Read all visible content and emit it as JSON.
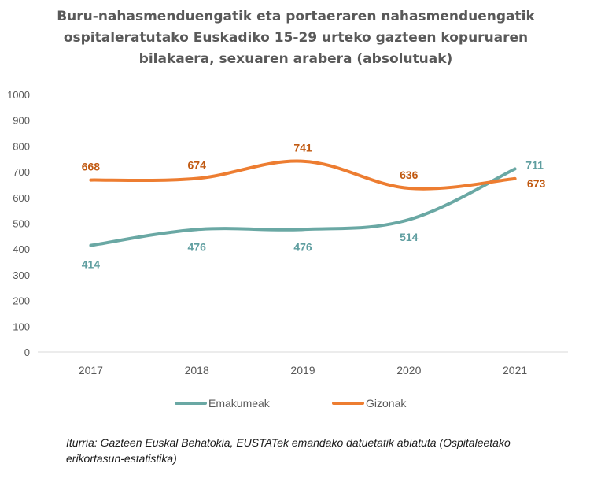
{
  "chart_data": {
    "type": "line",
    "title_lines": [
      "Buru-nahasmenduengatik eta portaeraren nahasmenduengatik",
      "ospitaleratutako Euskadiko 15-29 urteko gazteen kopuruaren",
      "bilakaera, sexuaren arabera (absolutuak)"
    ],
    "xlabel": "",
    "ylabel": "",
    "categories": [
      "2017",
      "2018",
      "2019",
      "2020",
      "2021"
    ],
    "ylim": [
      0,
      1000
    ],
    "yticks": [
      0,
      100,
      200,
      300,
      400,
      500,
      600,
      700,
      800,
      900,
      1000
    ],
    "grid": false,
    "legend_position": "bottom",
    "series": [
      {
        "name": "Emakumeak",
        "values": [
          414,
          476,
          476,
          514,
          711
        ],
        "color": "#6aa8a4"
      },
      {
        "name": "Gizonak",
        "values": [
          668,
          674,
          741,
          636,
          673
        ],
        "color": "#ed7d31"
      }
    ],
    "label_colors": {
      "Emakumeak": "#5f9ea0",
      "Gizonak": "#c15a12"
    }
  },
  "source_note": "Iturria: Gazteen Euskal Behatokia, EUSTATek emandako datuetatik abiatuta (Ospitaleetako erikortasun-estatistika)"
}
